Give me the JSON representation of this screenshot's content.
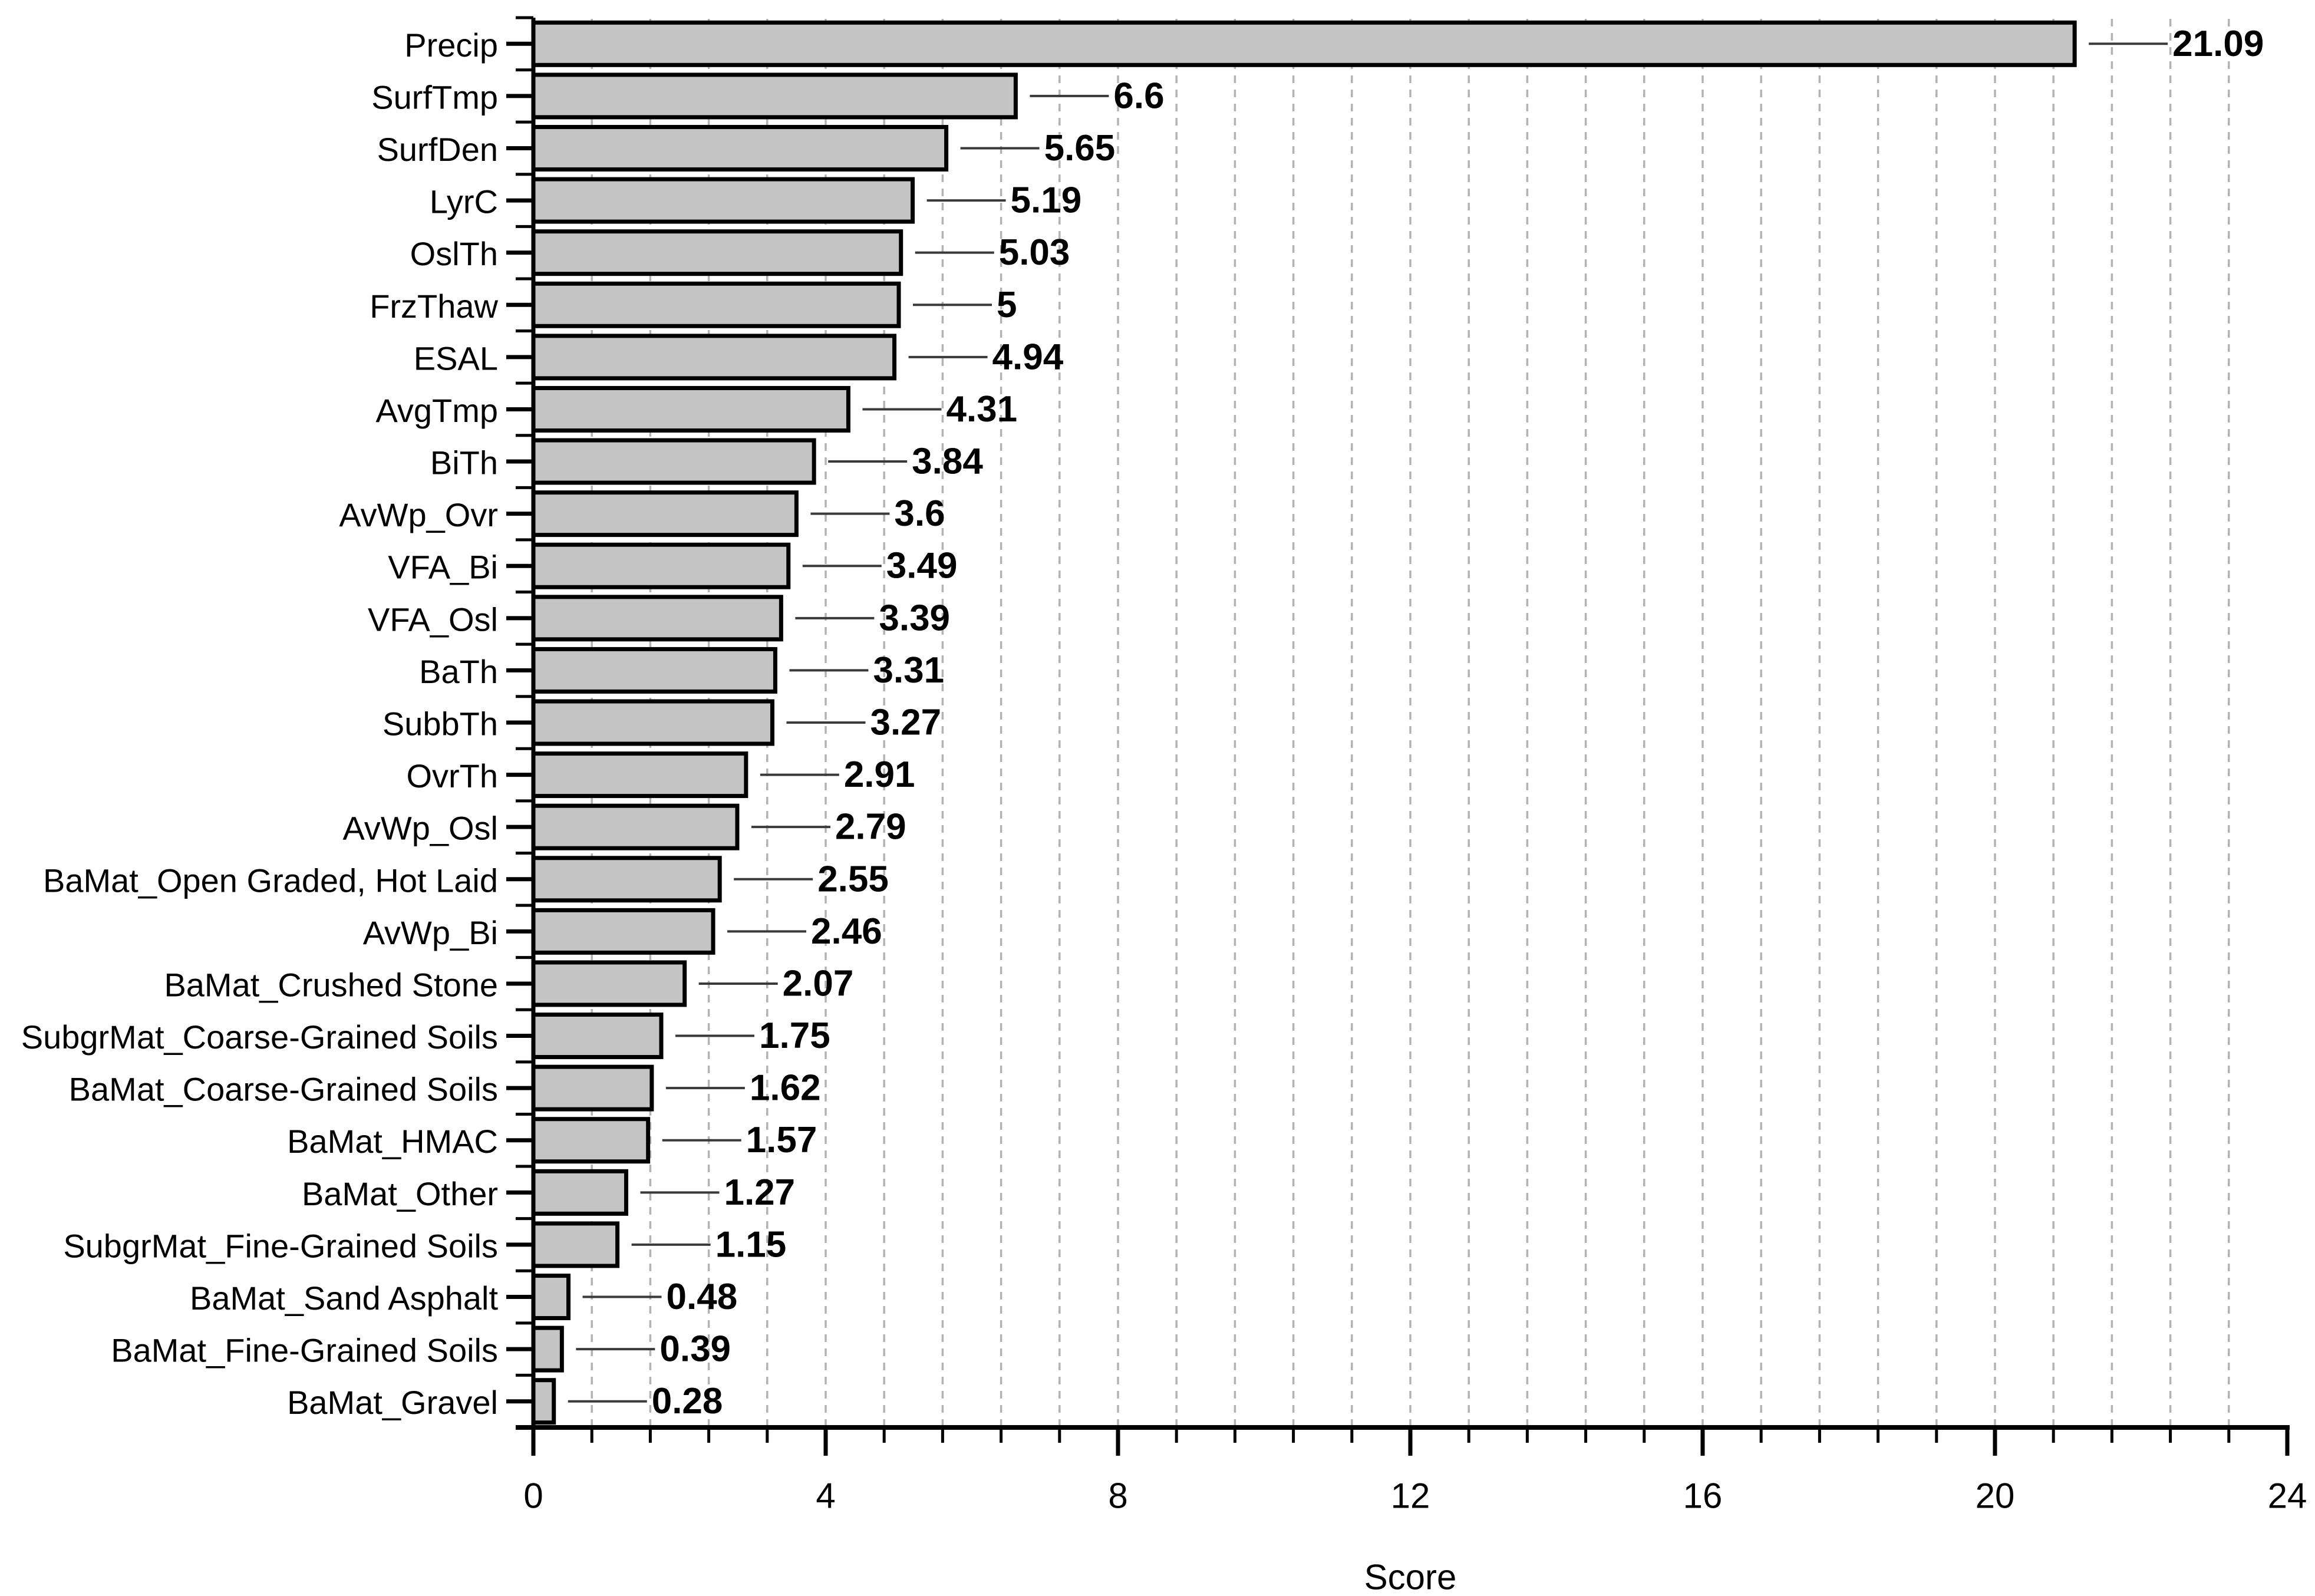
{
  "chart_data": {
    "type": "bar",
    "orientation": "horizontal",
    "title": "",
    "xlabel": "Score",
    "ylabel": "",
    "xlim": [
      0,
      24
    ],
    "x_major_ticks": [
      0,
      4,
      8,
      12,
      16,
      20,
      24
    ],
    "x_minor_unit": 0.8,
    "grid": "vertical dashed gridlines at every minor tick (0.8 step), full plot height",
    "legend": "none",
    "categories": [
      "Precip",
      "SurfTmp",
      "SurfDen",
      "LyrC",
      "OslTh",
      "FrzThaw",
      "ESAL",
      "AvgTmp",
      "BiTh",
      "AvWp_Ovr",
      "VFA_Bi",
      "VFA_Osl",
      "BaTh",
      "SubbTh",
      "OvrTh",
      "AvWp_Osl",
      "BaMat_Open Graded, Hot Laid",
      "AvWp_Bi",
      "BaMat_Crushed Stone",
      "SubgrMat_Coarse-Grained Soils",
      "BaMat_Coarse-Grained Soils",
      "BaMat_HMAC",
      "BaMat_Other",
      "SubgrMat_Fine-Grained Soils",
      "BaMat_Sand Asphalt",
      "BaMat_Fine-Grained Soils",
      "BaMat_Gravel"
    ],
    "values": [
      21.09,
      6.6,
      5.65,
      5.19,
      5.03,
      5,
      4.94,
      4.31,
      3.84,
      3.6,
      3.49,
      3.39,
      3.31,
      3.27,
      2.91,
      2.79,
      2.55,
      2.46,
      2.07,
      1.75,
      1.62,
      1.57,
      1.27,
      1.15,
      0.48,
      0.39,
      0.28
    ],
    "value_labels": [
      "21.09",
      "6.6",
      "5.65",
      "5.19",
      "5.03",
      "5",
      "4.94",
      "4.31",
      "3.84",
      "3.6",
      "3.49",
      "3.39",
      "3.31",
      "3.27",
      "2.91",
      "2.79",
      "2.55",
      "2.46",
      "2.07",
      "1.75",
      "1.62",
      "1.57",
      "1.27",
      "1.15",
      "0.48",
      "0.39",
      "0.28"
    ],
    "colors": {
      "bar_fill": "#c4c4c4",
      "bar_stroke": "#000000",
      "axis_line": "#000000",
      "gridline": "#b3b3b3",
      "leader_line": "#3a3a3a",
      "text": "#000000",
      "background": "#ffffff"
    }
  }
}
